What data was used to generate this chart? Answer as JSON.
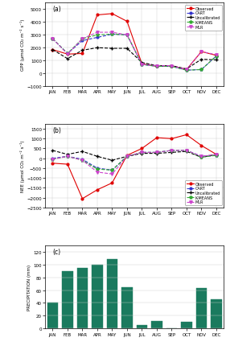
{
  "months": [
    "JAN",
    "FEB",
    "MAR",
    "APR",
    "MAY",
    "JUN",
    "JUL",
    "AUG",
    "SEP",
    "OCT",
    "NOV",
    "DEC"
  ],
  "gpp": {
    "observed": [
      1850,
      1500,
      1550,
      4550,
      4650,
      4050,
      750,
      550,
      600,
      300,
      1700,
      1400
    ],
    "cart": [
      2700,
      1550,
      2550,
      2800,
      3050,
      3000,
      700,
      550,
      550,
      250,
      300,
      1350
    ],
    "uncalib": [
      1850,
      1150,
      1800,
      2000,
      1950,
      1950,
      850,
      600,
      600,
      350,
      1100,
      1050
    ],
    "kmeans": [
      2700,
      1550,
      2700,
      3000,
      3050,
      3000,
      700,
      550,
      550,
      250,
      300,
      1350
    ],
    "mlr": [
      2700,
      1500,
      2700,
      3200,
      3200,
      3000,
      700,
      600,
      600,
      300,
      1700,
      1450
    ]
  },
  "gpp_ylim": [
    -1000,
    5500
  ],
  "gpp_yticks": [
    -1000,
    0,
    1000,
    2000,
    3000,
    4000,
    5000
  ],
  "nee": {
    "observed": [
      -250,
      -300,
      -2050,
      -1600,
      -1250,
      150,
      500,
      1050,
      1000,
      1200,
      650,
      200
    ],
    "cart": [
      0,
      100,
      -50,
      -500,
      -600,
      100,
      300,
      300,
      400,
      400,
      100,
      150
    ],
    "uncalib": [
      400,
      200,
      350,
      100,
      -100,
      100,
      250,
      250,
      300,
      350,
      50,
      200
    ],
    "kmeans": [
      -50,
      100,
      -100,
      -550,
      -600,
      100,
      300,
      300,
      400,
      400,
      50,
      150
    ],
    "mlr": [
      -50,
      100,
      -100,
      -700,
      -800,
      100,
      300,
      300,
      400,
      400,
      100,
      200
    ]
  },
  "nee_ylim": [
    -2500,
    1750
  ],
  "nee_yticks": [
    -2500,
    -2000,
    -1500,
    -1000,
    -500,
    0,
    500,
    1000,
    1500
  ],
  "precip": {
    "values": [
      40,
      90,
      95,
      100,
      108,
      65,
      5,
      12,
      0,
      10,
      63,
      46
    ]
  },
  "precip_ylim": [
    0,
    130
  ],
  "precip_yticks": [
    0,
    20,
    40,
    60,
    80,
    100,
    120
  ],
  "colors": {
    "observed": "#e00000",
    "cart": "#3333cc",
    "uncalib": "#000000",
    "kmeans": "#33aa33",
    "mlr": "#cc44cc"
  },
  "bar_color": "#1a7a5e",
  "panel_labels": [
    "(a)",
    "(b)",
    "(c)"
  ],
  "gpp_ylabel": "GPP (μmol CO₂ m⁻² s⁻¹)",
  "nee_ylabel": "NEE (μmol CO₂ m⁻² s⁻¹)",
  "precip_ylabel": "PRECIPITATION (mm)"
}
